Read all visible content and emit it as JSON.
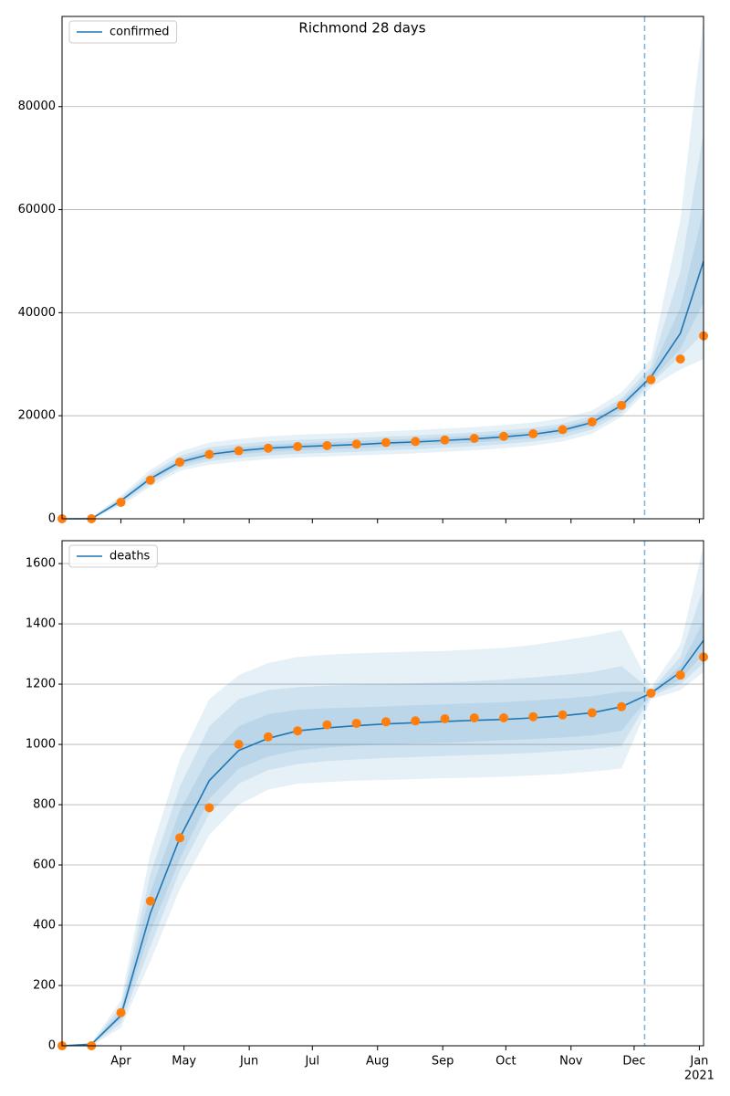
{
  "chart_data": [
    {
      "type": "line",
      "title": "Richmond 28 days",
      "x": [
        64,
        78,
        92,
        106,
        120,
        134,
        148,
        162,
        176,
        190,
        204,
        218,
        232,
        246,
        260,
        274,
        288,
        302,
        316,
        330,
        344,
        358,
        369
      ],
      "xlim": [
        64,
        369
      ],
      "xticks": [
        92,
        122,
        153,
        183,
        214,
        245,
        275,
        306,
        336,
        367
      ],
      "ylim": [
        0,
        97500
      ],
      "yticks": [
        0,
        20000,
        40000,
        60000,
        80000
      ],
      "grid": true,
      "legend": "upper left",
      "vline": 341,
      "series": [
        {
          "name": "confirmed",
          "color": "#1f77b4",
          "values": [
            0,
            0,
            3500,
            7800,
            11000,
            12500,
            13200,
            13700,
            14000,
            14200,
            14400,
            14700,
            14900,
            15200,
            15500,
            15900,
            16400,
            17200,
            18700,
            22000,
            27500,
            36000,
            50000
          ]
        }
      ],
      "observed": {
        "color": "#ff7f0e",
        "values": [
          0,
          0,
          3200,
          7500,
          11000,
          12500,
          13200,
          13700,
          14000,
          14200,
          14500,
          14800,
          15000,
          15300,
          15600,
          16000,
          16500,
          17300,
          18800,
          22000,
          27000,
          31000,
          35500
        ]
      },
      "bands": [
        {
          "color": "#1f77b4",
          "upper": [
            0,
            300,
            4500,
            9500,
            13000,
            14800,
            15500,
            16000,
            16300,
            16500,
            16700,
            17000,
            17200,
            17500,
            17800,
            18200,
            18700,
            19500,
            21000,
            24500,
            31000,
            58000,
            97000
          ],
          "lower": [
            0,
            0,
            2500,
            6200,
            9300,
            10500,
            11100,
            11600,
            11900,
            12100,
            12300,
            12500,
            12700,
            13000,
            13300,
            13700,
            14200,
            15000,
            16500,
            19800,
            25500,
            29000,
            31000
          ]
        },
        {
          "color": "#1f77b4",
          "upper": [
            0,
            200,
            4100,
            8800,
            12200,
            13900,
            14500,
            15000,
            15300,
            15500,
            15700,
            15950,
            16150,
            16450,
            16750,
            17150,
            17650,
            18450,
            19950,
            23400,
            29500,
            48000,
            75000
          ],
          "lower": [
            0,
            0,
            2900,
            6800,
            9900,
            11200,
            11800,
            12300,
            12600,
            12800,
            13000,
            13300,
            13500,
            13800,
            14100,
            14500,
            15000,
            15800,
            17300,
            20500,
            26300,
            31500,
            36000
          ]
        },
        {
          "color": "#1f77b4",
          "upper": [
            0,
            100,
            3800,
            8300,
            11600,
            13200,
            13850,
            14350,
            14650,
            14850,
            15050,
            15330,
            15520,
            15820,
            16120,
            16520,
            17020,
            17820,
            19320,
            22700,
            28500,
            41000,
            60000
          ],
          "lower": [
            0,
            0,
            3200,
            7300,
            10400,
            11800,
            12500,
            13000,
            13300,
            13500,
            13700,
            14000,
            14200,
            14500,
            14800,
            15200,
            15700,
            16500,
            18000,
            21200,
            26800,
            33000,
            42000
          ]
        }
      ]
    },
    {
      "type": "line",
      "x": [
        64,
        78,
        92,
        106,
        120,
        134,
        148,
        162,
        176,
        190,
        204,
        218,
        232,
        246,
        260,
        274,
        288,
        302,
        316,
        330,
        344,
        358,
        369
      ],
      "xlim": [
        64,
        369
      ],
      "xticks": [
        {
          "value": 92,
          "label": "Apr"
        },
        {
          "value": 122,
          "label": "May"
        },
        {
          "value": 153,
          "label": "Jun"
        },
        {
          "value": 183,
          "label": "Jul"
        },
        {
          "value": 214,
          "label": "Aug"
        },
        {
          "value": 245,
          "label": "Sep"
        },
        {
          "value": 275,
          "label": "Oct"
        },
        {
          "value": 306,
          "label": "Nov"
        },
        {
          "value": 336,
          "label": "Dec"
        },
        {
          "value": 367,
          "label": "Jan"
        }
      ],
      "year_label": "2021",
      "ylim": [
        0,
        1676
      ],
      "yticks": [
        0,
        200,
        400,
        600,
        800,
        1000,
        1200,
        1400,
        1600
      ],
      "grid": true,
      "legend": "upper left",
      "vline": 341,
      "series": [
        {
          "name": "deaths",
          "color": "#1f77b4",
          "values": [
            0,
            5,
            100,
            440,
            690,
            880,
            980,
            1020,
            1045,
            1055,
            1062,
            1068,
            1072,
            1076,
            1080,
            1083,
            1088,
            1095,
            1105,
            1125,
            1170,
            1240,
            1345
          ]
        }
      ],
      "observed": {
        "color": "#ff7f0e",
        "values": [
          0,
          0,
          110,
          480,
          690,
          790,
          1000,
          1025,
          1045,
          1065,
          1070,
          1075,
          1078,
          1085,
          1088,
          1088,
          1092,
          1098,
          1105,
          1125,
          1170,
          1230,
          1290
        ]
      },
      "bands": [
        {
          "color": "#1f77b4",
          "upper": [
            0,
            10,
            150,
            640,
            950,
            1150,
            1230,
            1270,
            1290,
            1298,
            1302,
            1305,
            1308,
            1310,
            1315,
            1320,
            1330,
            1345,
            1360,
            1380,
            1190,
            1330,
            1660
          ],
          "lower": [
            0,
            0,
            60,
            280,
            520,
            700,
            800,
            850,
            870,
            875,
            880,
            882,
            885,
            888,
            890,
            893,
            897,
            902,
            910,
            920,
            1150,
            1180,
            1240
          ]
        },
        {
          "color": "#1f77b4",
          "upper": [
            0,
            8,
            130,
            570,
            860,
            1060,
            1150,
            1180,
            1190,
            1195,
            1198,
            1200,
            1203,
            1206,
            1210,
            1215,
            1222,
            1230,
            1240,
            1260,
            1180,
            1290,
            1520
          ],
          "lower": [
            0,
            1,
            75,
            330,
            580,
            770,
            870,
            915,
            935,
            945,
            950,
            955,
            958,
            962,
            965,
            968,
            972,
            978,
            985,
            995,
            1160,
            1200,
            1270
          ]
        },
        {
          "color": "#1f77b4",
          "upper": [
            0,
            6,
            115,
            510,
            780,
            960,
            1060,
            1100,
            1115,
            1120,
            1123,
            1126,
            1130,
            1133,
            1137,
            1140,
            1146,
            1152,
            1160,
            1175,
            1175,
            1260,
            1410
          ],
          "lower": [
            0,
            3,
            90,
            380,
            620,
            820,
            920,
            960,
            980,
            990,
            996,
            1000,
            1003,
            1006,
            1010,
            1014,
            1018,
            1023,
            1030,
            1045,
            1165,
            1215,
            1300
          ]
        }
      ]
    }
  ]
}
